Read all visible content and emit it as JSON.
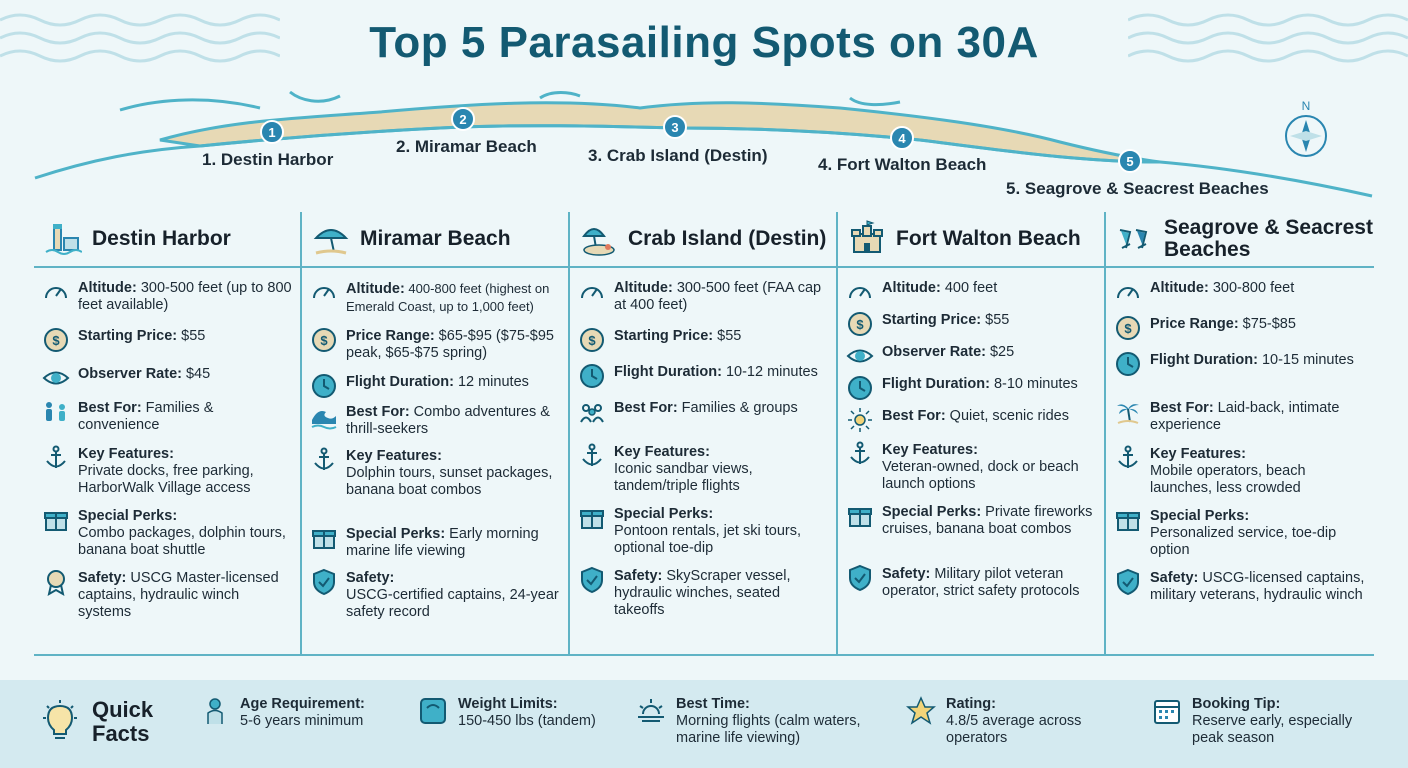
{
  "title": "Top 5 Parasailing Spots on 30A",
  "map": {
    "compass_letter": "N",
    "markers": [
      {
        "number": "1",
        "label": "1. Destin Harbor"
      },
      {
        "number": "2",
        "label": "2. Miramar Beach"
      },
      {
        "number": "3",
        "label": "3. Crab Island (Destin)"
      },
      {
        "number": "4",
        "label": "4. Fort Walton Beach"
      },
      {
        "number": "5",
        "label": "5. Seagrove & Seacrest Beaches"
      }
    ]
  },
  "columns": [
    {
      "title": "Destin Harbor",
      "icon": "lighthouse-icon",
      "rows": [
        {
          "icon": "gauge-icon",
          "label": "Altitude:",
          "text": " 300-500 feet (up to 800 feet available)"
        },
        {
          "icon": "dollar-icon",
          "label": "Starting Price:",
          "text": " $55"
        },
        {
          "icon": "eye-icon",
          "label": "Observer Rate:",
          "text": " $45"
        },
        {
          "icon": "family-icon",
          "label": "Best For:",
          "text": " Families & convenience"
        },
        {
          "icon": "anchor-icon",
          "label": "Key Features:",
          "text": "Private docks, free parking, HarborWalk Village access",
          "block": true
        },
        {
          "icon": "gift-icon",
          "label": "Special Perks:",
          "text": "Combo packages, dolphin tours, banana boat shuttle",
          "block": true
        },
        {
          "icon": "award-icon",
          "label": "Safety:",
          "text": " USCG Master-licensed captains, hydraulic winch systems"
        }
      ]
    },
    {
      "title": "Miramar Beach",
      "icon": "umbrella-icon",
      "rows": [
        {
          "icon": "gauge-icon",
          "label": "Altitude:",
          "text": " 400-800 feet (highest on Emerald Coast, up to 1,000 feet)"
        },
        {
          "icon": "dollar-icon",
          "label": "Price Range:",
          "text": " $65-$95 ($75-$95 peak, $65-$75 spring)"
        },
        {
          "icon": "clock-icon",
          "label": "Flight Duration:",
          "text": " 12 minutes"
        },
        {
          "icon": "wave-icon",
          "label": "Best For:",
          "text": " Combo adventures & thrill-seekers"
        },
        {
          "icon": "anchor-icon",
          "label": "Key Features:",
          "text": "Dolphin tours, sunset packages, banana boat combos",
          "block": true
        },
        {
          "icon": "gift-icon",
          "label": "Special Perks:",
          "text": " Early morning marine life viewing"
        },
        {
          "icon": "shield-icon",
          "label": "Safety:",
          "text": "USCG-certified captains, 24-year safety record",
          "block": true
        }
      ]
    },
    {
      "title": "Crab Island (Destin)",
      "icon": "island-icon",
      "rows": [
        {
          "icon": "gauge-icon",
          "label": "Altitude:",
          "text": " 300-500 feet (FAA cap at 400 feet)"
        },
        {
          "icon": "dollar-icon",
          "label": "Starting Price:",
          "text": " $55"
        },
        {
          "icon": "clock-icon",
          "label": "Flight Duration:",
          "text": " 10-12 minutes"
        },
        {
          "icon": "group-icon",
          "label": "Best For:",
          "text": " Families & groups"
        },
        {
          "icon": "anchor-icon",
          "label": "Key Features:",
          "text": "Iconic sandbar views, tandem/triple flights",
          "block": true
        },
        {
          "icon": "gift-icon",
          "label": "Special Perks:",
          "text": "Pontoon rentals, jet ski tours, optional toe-dip",
          "block": true
        },
        {
          "icon": "shield-icon",
          "label": "Safety:",
          "text": " SkyScraper vessel, hydraulic winches, seated takeoffs"
        }
      ]
    },
    {
      "title": "Fort Walton Beach",
      "icon": "castle-icon",
      "rows": [
        {
          "icon": "gauge-icon",
          "label": "Altitude:",
          "text": " 400 feet"
        },
        {
          "icon": "dollar-icon",
          "label": "Starting Price:",
          "text": " $55"
        },
        {
          "icon": "eye-icon",
          "label": "Observer Rate:",
          "text": " $25"
        },
        {
          "icon": "clock-icon",
          "label": "Flight Duration:",
          "text": " 8-10 minutes"
        },
        {
          "icon": "sun-icon",
          "label": "Best For:",
          "text": " Quiet, scenic rides"
        },
        {
          "icon": "anchor-icon",
          "label": "Key Features:",
          "text": "Veteran-owned, dock or beach launch options",
          "block": true
        },
        {
          "icon": "gift-icon",
          "label": "Special Perks:",
          "text": " Private fireworks cruises, banana boat combos"
        },
        {
          "icon": "shield-icon",
          "label": "Safety:",
          "text": " Military pilot veteran operator, strict safety protocols"
        }
      ]
    },
    {
      "title": "Seagrove & Seacrest Beaches",
      "icon": "beach-chairs-icon",
      "rows": [
        {
          "icon": "gauge-icon",
          "label": "Altitude:",
          "text": " 300-800 feet"
        },
        {
          "icon": "dollar-icon",
          "label": "Price Range:",
          "text": " $75-$85"
        },
        {
          "icon": "clock-icon",
          "label": "Flight Duration:",
          "text": " 10-15 minutes"
        },
        {
          "icon": "palm-icon",
          "label": "Best For:",
          "text": " Laid-back, intimate experience"
        },
        {
          "icon": "anchor-icon",
          "label": "Key Features:",
          "text": "Mobile operators, beach launches, less crowded",
          "block": true
        },
        {
          "icon": "gift-icon",
          "label": "Special Perks:",
          "text": "Personalized service, toe-dip option",
          "block": true
        },
        {
          "icon": "shield-icon",
          "label": "Safety:",
          "text": " USCG-licensed captains, military veterans, hydraulic winch"
        }
      ]
    }
  ],
  "quick_facts": {
    "heading": "Quick Facts",
    "items": [
      {
        "icon": "baby-icon",
        "label": "Age Requirement:",
        "text": "5-6 years minimum"
      },
      {
        "icon": "scale-icon",
        "label": "Weight Limits:",
        "text": "150-450 lbs (tandem)"
      },
      {
        "icon": "sunrise-icon",
        "label": "Best Time:",
        "text": "Morning flights (calm waters, marine life viewing)"
      },
      {
        "icon": "star-icon",
        "label": "Rating:",
        "text": "4.8/5 average across operators"
      },
      {
        "icon": "calendar-icon",
        "label": "Booking Tip:",
        "text": "Reserve early, especially peak season"
      }
    ]
  },
  "colors": {
    "title": "#135a72",
    "accent": "#2a86b0",
    "teal": "#3fb0c8",
    "sand": "#e7d9b5",
    "background": "#eef7f9",
    "facts_band": "#d4eaf0"
  }
}
